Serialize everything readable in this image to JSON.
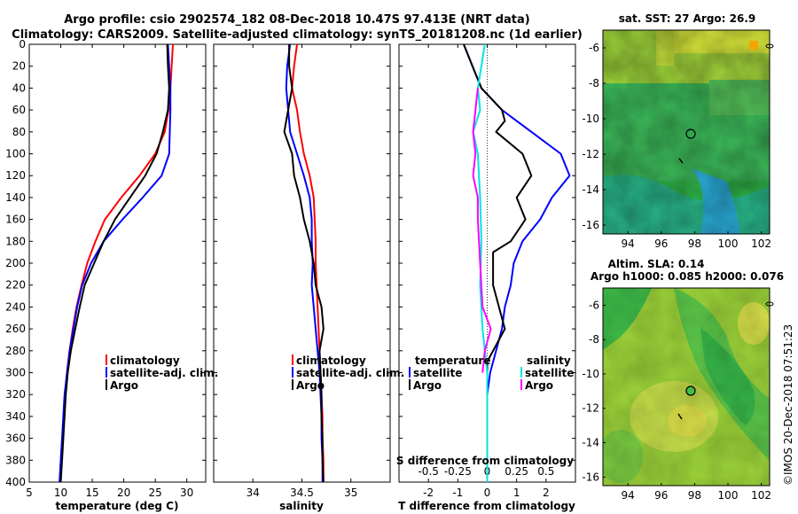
{
  "figure": {
    "title_line1": "Argo profile: csio 2902574_182 08-Dec-2018 10.47S 97.413E (NRT data)",
    "title_line2": "Climatology: CARS2009. Satellite-adjusted climatology: synTS_20181208.nc (1d earlier)",
    "credit": "©IMOS 20-Dec-2018 07:51:23"
  },
  "colors": {
    "climatology": "#ff0000",
    "satellite": "#0000ff",
    "argo": "#000000",
    "salinity_satellite": "#00e5e5",
    "salinity_argo": "#ff00ff"
  },
  "chart_data": [
    {
      "id": "temperature",
      "type": "line",
      "xlabel": "temperature (deg C)",
      "ylabel": "",
      "xlim": [
        5,
        33
      ],
      "ylim": [
        400,
        0
      ],
      "xticks": [
        5,
        10,
        15,
        20,
        25,
        30
      ],
      "yticks": [
        0,
        20,
        40,
        60,
        80,
        100,
        120,
        140,
        160,
        180,
        200,
        220,
        240,
        260,
        280,
        300,
        320,
        340,
        360,
        380,
        400
      ],
      "legend": [
        "climatology",
        "satellite-adj. clim.",
        "Argo"
      ],
      "series": [
        {
          "name": "climatology",
          "color": "#ff0000",
          "points": [
            [
              27.8,
              0
            ],
            [
              27.6,
              20
            ],
            [
              27.4,
              40
            ],
            [
              27.1,
              60
            ],
            [
              26.5,
              80
            ],
            [
              25.0,
              100
            ],
            [
              22.5,
              120
            ],
            [
              19.6,
              140
            ],
            [
              17.0,
              160
            ],
            [
              15.5,
              180
            ],
            [
              14.2,
              200
            ],
            [
              13.3,
              220
            ],
            [
              12.5,
              240
            ],
            [
              11.9,
              260
            ],
            [
              11.4,
              280
            ],
            [
              11.0,
              300
            ],
            [
              10.7,
              320
            ],
            [
              10.5,
              340
            ],
            [
              10.3,
              360
            ],
            [
              10.1,
              380
            ],
            [
              10.0,
              400
            ]
          ]
        },
        {
          "name": "satellite-adj. clim.",
          "color": "#0000ff",
          "points": [
            [
              27.0,
              0
            ],
            [
              27.2,
              20
            ],
            [
              27.4,
              40
            ],
            [
              27.4,
              60
            ],
            [
              27.3,
              80
            ],
            [
              27.2,
              100
            ],
            [
              26.0,
              120
            ],
            [
              23.0,
              140
            ],
            [
              19.8,
              160
            ],
            [
              16.8,
              180
            ],
            [
              14.8,
              200
            ],
            [
              13.4,
              220
            ],
            [
              12.6,
              240
            ],
            [
              12.0,
              260
            ],
            [
              11.4,
              280
            ],
            [
              11.0,
              300
            ],
            [
              10.6,
              320
            ],
            [
              10.4,
              340
            ],
            [
              10.2,
              360
            ],
            [
              10.0,
              380
            ],
            [
              9.8,
              400
            ]
          ]
        },
        {
          "name": "Argo",
          "color": "#000000",
          "points": [
            [
              26.9,
              0
            ],
            [
              27.0,
              20
            ],
            [
              27.2,
              40
            ],
            [
              27.0,
              60
            ],
            [
              26.2,
              80
            ],
            [
              25.2,
              100
            ],
            [
              23.4,
              120
            ],
            [
              21.0,
              140
            ],
            [
              18.6,
              160
            ],
            [
              16.8,
              180
            ],
            [
              15.3,
              200
            ],
            [
              13.8,
              220
            ],
            [
              13.0,
              240
            ],
            [
              12.3,
              260
            ],
            [
              11.6,
              280
            ],
            [
              11.1,
              300
            ],
            [
              10.8,
              320
            ],
            [
              10.6,
              340
            ],
            [
              10.4,
              360
            ],
            [
              10.2,
              380
            ],
            [
              10.0,
              400
            ]
          ]
        }
      ]
    },
    {
      "id": "salinity",
      "type": "line",
      "xlabel": "salinity",
      "xlim": [
        33.6,
        35.4
      ],
      "ylim": [
        400,
        0
      ],
      "xticks": [
        34,
        34.5,
        35
      ],
      "xtick_labels": [
        "34",
        "34.5",
        "35"
      ],
      "legend": [
        "climatology",
        "satellite-adj. clim.",
        "Argo"
      ],
      "series": [
        {
          "name": "climatology",
          "color": "#ff0000",
          "points": [
            [
              34.45,
              0
            ],
            [
              34.42,
              20
            ],
            [
              34.4,
              40
            ],
            [
              34.45,
              60
            ],
            [
              34.48,
              80
            ],
            [
              34.52,
              100
            ],
            [
              34.58,
              120
            ],
            [
              34.62,
              140
            ],
            [
              34.63,
              160
            ],
            [
              34.64,
              180
            ],
            [
              34.64,
              200
            ],
            [
              34.65,
              220
            ],
            [
              34.66,
              240
            ],
            [
              34.67,
              260
            ],
            [
              34.68,
              280
            ],
            [
              34.69,
              300
            ],
            [
              34.7,
              320
            ],
            [
              34.71,
              340
            ],
            [
              34.71,
              360
            ],
            [
              34.72,
              380
            ],
            [
              34.72,
              400
            ]
          ]
        },
        {
          "name": "satellite-adj. clim.",
          "color": "#0000ff",
          "points": [
            [
              34.38,
              0
            ],
            [
              34.35,
              20
            ],
            [
              34.34,
              40
            ],
            [
              34.36,
              60
            ],
            [
              34.38,
              80
            ],
            [
              34.45,
              100
            ],
            [
              34.52,
              120
            ],
            [
              34.58,
              140
            ],
            [
              34.6,
              160
            ],
            [
              34.6,
              180
            ],
            [
              34.61,
              200
            ],
            [
              34.6,
              220
            ],
            [
              34.62,
              240
            ],
            [
              34.64,
              260
            ],
            [
              34.66,
              280
            ],
            [
              34.68,
              300
            ],
            [
              34.69,
              320
            ],
            [
              34.7,
              340
            ],
            [
              34.7,
              360
            ],
            [
              34.71,
              380
            ],
            [
              34.71,
              400
            ]
          ]
        },
        {
          "name": "Argo",
          "color": "#000000",
          "points": [
            [
              34.37,
              0
            ],
            [
              34.37,
              20
            ],
            [
              34.4,
              40
            ],
            [
              34.36,
              60
            ],
            [
              34.32,
              80
            ],
            [
              34.4,
              100
            ],
            [
              34.42,
              120
            ],
            [
              34.48,
              140
            ],
            [
              34.52,
              160
            ],
            [
              34.58,
              180
            ],
            [
              34.62,
              200
            ],
            [
              34.64,
              220
            ],
            [
              34.7,
              240
            ],
            [
              34.72,
              260
            ],
            [
              34.68,
              280
            ],
            [
              34.69,
              300
            ],
            [
              34.7,
              320
            ],
            [
              34.7,
              340
            ],
            [
              34.71,
              360
            ],
            [
              34.71,
              380
            ],
            [
              34.72,
              400
            ]
          ]
        }
      ]
    },
    {
      "id": "difference",
      "type": "line",
      "xlabel": "T difference from climatology",
      "xlim": [
        -3,
        3
      ],
      "ylim": [
        400,
        0
      ],
      "xticks": [
        -2,
        -1,
        0,
        1,
        2
      ],
      "xtick_labels": [
        "-2",
        "-1",
        "0",
        "1",
        "2"
      ],
      "top_axis_label": "S difference from climatology",
      "top_ticks": [
        -0.5,
        -0.25,
        0,
        0.25,
        0.5
      ],
      "top_tick_labels": [
        "-0.5",
        "-0.25",
        "0",
        "0.25",
        "0.5"
      ],
      "legend_temperature": [
        "temperature",
        "satellite",
        "Argo"
      ],
      "legend_salinity": [
        "salinity",
        "satellite",
        "Argo"
      ],
      "series": [
        {
          "name": "temperature satellite",
          "color": "#0000ff",
          "points": [
            [
              -0.8,
              0
            ],
            [
              -0.5,
              20
            ],
            [
              -0.2,
              40
            ],
            [
              0.5,
              60
            ],
            [
              1.5,
              80
            ],
            [
              2.5,
              100
            ],
            [
              2.8,
              120
            ],
            [
              2.2,
              140
            ],
            [
              1.8,
              160
            ],
            [
              1.2,
              180
            ],
            [
              0.9,
              200
            ],
            [
              0.8,
              220
            ],
            [
              0.6,
              240
            ],
            [
              0.5,
              260
            ],
            [
              0.3,
              280
            ],
            [
              0.1,
              300
            ],
            [
              0.0,
              320
            ],
            [
              0.0,
              360
            ],
            [
              0.0,
              400
            ]
          ]
        },
        {
          "name": "temperature Argo",
          "color": "#000000",
          "points": [
            [
              -0.8,
              0
            ],
            [
              -0.5,
              20
            ],
            [
              -0.2,
              40
            ],
            [
              0.5,
              60
            ],
            [
              0.6,
              70
            ],
            [
              0.3,
              80
            ],
            [
              1.2,
              100
            ],
            [
              1.5,
              120
            ],
            [
              1.0,
              140
            ],
            [
              1.3,
              160
            ],
            [
              0.8,
              180
            ],
            [
              0.2,
              190
            ],
            [
              0.2,
              220
            ],
            [
              0.6,
              260
            ],
            [
              0.0,
              290
            ],
            [
              0.0,
              320
            ],
            [
              0.0,
              400
            ]
          ]
        },
        {
          "name": "salinity satellite",
          "color": "#00e5e5",
          "points": [
            [
              -0.02,
              0
            ],
            [
              -0.05,
              20
            ],
            [
              -0.08,
              40
            ],
            [
              -0.06,
              60
            ],
            [
              -0.12,
              80
            ],
            [
              -0.08,
              100
            ],
            [
              -0.06,
              140
            ],
            [
              -0.05,
              180
            ],
            [
              -0.06,
              220
            ],
            [
              -0.04,
              260
            ],
            [
              0.0,
              300
            ],
            [
              0.0,
              360
            ],
            [
              0.0,
              400
            ]
          ]
        },
        {
          "name": "salinity Argo",
          "color": "#ff00ff",
          "points": [
            [
              -0.08,
              40
            ],
            [
              -0.12,
              80
            ],
            [
              -0.1,
              100
            ],
            [
              -0.12,
              120
            ],
            [
              -0.08,
              140
            ],
            [
              -0.08,
              160
            ],
            [
              -0.06,
              200
            ],
            [
              -0.04,
              240
            ],
            [
              0.03,
              260
            ],
            [
              -0.02,
              280
            ],
            [
              -0.04,
              300
            ]
          ]
        }
      ]
    },
    {
      "id": "sst-map",
      "type": "heatmap",
      "title": "sat. SST: 27 Argo: 26.9",
      "xlim": [
        92.5,
        102.5
      ],
      "ylim": [
        -16.5,
        -5
      ],
      "xticks": [
        94,
        96,
        98,
        100,
        102
      ],
      "yticks": [
        -6,
        -8,
        -10,
        -12,
        -14,
        -16
      ],
      "argo_location": [
        97.4,
        -10.5
      ]
    },
    {
      "id": "sla-map",
      "type": "heatmap",
      "title_line1": "Altim. SLA: 0.14",
      "title_line2": "Argo h1000: 0.085 h2000: 0.076",
      "xlim": [
        92.5,
        102.5
      ],
      "ylim": [
        -16.5,
        -5
      ],
      "xticks": [
        94,
        96,
        98,
        100,
        102
      ],
      "yticks": [
        -6,
        -8,
        -10,
        -12,
        -14,
        -16
      ],
      "argo_location": [
        97.4,
        -10.5
      ]
    }
  ]
}
